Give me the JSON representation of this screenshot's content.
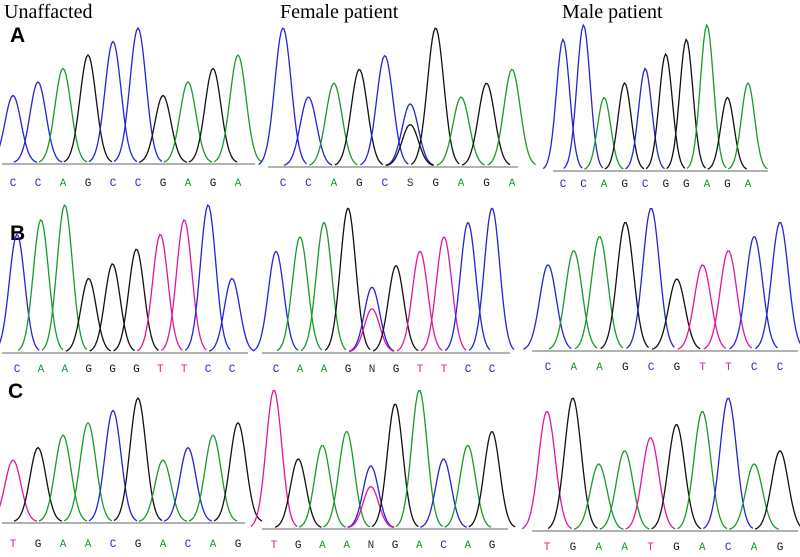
{
  "columns": [
    "Unaffacted",
    "Female patient",
    "Male patient"
  ],
  "rows": [
    {
      "label": "A",
      "panels": [
        {
          "sequence": [
            "C",
            "C",
            "A",
            "G",
            "C",
            "C",
            "G",
            "A",
            "G",
            "A"
          ]
        },
        {
          "sequence": [
            "C",
            "C",
            "A",
            "G",
            "C",
            "S",
            "G",
            "A",
            "G",
            "A"
          ]
        },
        {
          "sequence": [
            "C",
            "C",
            "A",
            "G",
            "C",
            "G",
            "G",
            "A",
            "G",
            "A"
          ]
        }
      ]
    },
    {
      "label": "B",
      "panels": [
        {
          "sequence": [
            "C",
            "A",
            "A",
            "G",
            "G",
            "G",
            "T",
            "T",
            "C",
            "C"
          ]
        },
        {
          "sequence": [
            "C",
            "A",
            "A",
            "G",
            "N",
            "G",
            "T",
            "T",
            "C",
            "C"
          ]
        },
        {
          "sequence": [
            "C",
            "A",
            "A",
            "G",
            "C",
            "G",
            "T",
            "T",
            "C",
            "C"
          ]
        }
      ]
    },
    {
      "label": "C",
      "panels": [
        {
          "sequence": [
            "T",
            "G",
            "A",
            "A",
            "C",
            "G",
            "A",
            "C",
            "A",
            "G"
          ]
        },
        {
          "sequence": [
            "T",
            "G",
            "A",
            "A",
            "N",
            "G",
            "A",
            "C",
            "A",
            "G"
          ]
        },
        {
          "sequence": [
            "T",
            "G",
            "A",
            "A",
            "T",
            "G",
            "A",
            "C",
            "A",
            "G"
          ]
        }
      ]
    }
  ]
}
